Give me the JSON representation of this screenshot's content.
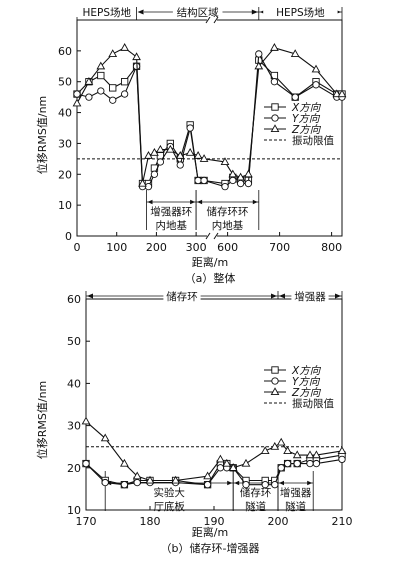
{
  "chart_data": [
    {
      "type": "line",
      "title": "（a）整体",
      "xlabel": "距离/m",
      "ylabel": "位移RMS值/nm",
      "xlim": [
        0,
        820
      ],
      "ylim": [
        0,
        70
      ],
      "break_x": [
        340,
        570
      ],
      "xticks": [
        {
          "value": 0,
          "label": "0"
        },
        {
          "value": 100,
          "label": "100"
        },
        {
          "value": 200,
          "label": "200"
        },
        {
          "value": 300,
          "label": "300"
        },
        {
          "value": 600,
          "label": "600"
        },
        {
          "value": 700,
          "label": "700"
        },
        {
          "value": 800,
          "label": "800"
        }
      ],
      "yticks": [
        0,
        10,
        20,
        30,
        40,
        50,
        60
      ],
      "regions_top": [
        {
          "label": "HEPS场地",
          "from": 0,
          "to": 150
        },
        {
          "label": "结构区域",
          "from": 150,
          "to": 660
        },
        {
          "label": "HEPS场地",
          "from": 660,
          "to": 820
        }
      ],
      "regions_bottom": [
        {
          "label": "增强器环内地基",
          "from": 175,
          "to": 300
        },
        {
          "label": "储存环环内地基",
          "from": 300,
          "to": 660
        }
      ],
      "limit": {
        "name": "振动限值",
        "value": 25
      },
      "series": [
        {
          "name": "X方向",
          "marker": "square",
          "x": [
            0,
            30,
            60,
            90,
            120,
            150,
            165,
            180,
            195,
            210,
            235,
            260,
            285,
            305,
            320,
            595,
            610,
            625,
            640,
            660,
            690,
            730,
            770,
            810,
            820
          ],
          "y": [
            46,
            50,
            52,
            48,
            50,
            55,
            17,
            17,
            22,
            26,
            30,
            25,
            36,
            18,
            18,
            17,
            19,
            18,
            18,
            57,
            52,
            45,
            50,
            46,
            46
          ]
        },
        {
          "name": "Y方向",
          "marker": "circle",
          "x": [
            0,
            30,
            60,
            90,
            120,
            150,
            165,
            180,
            195,
            210,
            235,
            260,
            285,
            305,
            320,
            595,
            610,
            625,
            640,
            660,
            690,
            730,
            770,
            810,
            820
          ],
          "y": [
            46,
            45,
            47,
            44,
            46,
            55,
            16,
            16,
            20,
            24,
            29,
            23,
            35,
            18,
            18,
            16,
            18,
            17,
            17,
            59,
            50,
            45,
            49,
            45,
            45
          ]
        },
        {
          "name": "Z方向",
          "marker": "triangle",
          "x": [
            0,
            30,
            60,
            90,
            120,
            150,
            165,
            180,
            195,
            210,
            235,
            260,
            285,
            305,
            320,
            595,
            610,
            625,
            640,
            660,
            690,
            730,
            770,
            810,
            820
          ],
          "y": [
            43,
            50,
            55,
            59,
            61,
            58,
            17,
            26,
            27,
            28,
            28,
            26,
            27,
            26,
            25,
            24,
            20,
            19,
            20,
            55,
            61,
            59,
            54,
            46,
            46
          ]
        }
      ]
    },
    {
      "type": "line",
      "title": "（b）储存环-增强器",
      "xlabel": "距离/m",
      "ylabel": "位移RMS值/nm",
      "xlim": [
        170,
        210
      ],
      "ylim": [
        10,
        60
      ],
      "xticks": [
        {
          "value": 170,
          "label": "170"
        },
        {
          "value": 180,
          "label": "180"
        },
        {
          "value": 190,
          "label": "190"
        },
        {
          "value": 200,
          "label": "200"
        },
        {
          "value": 210,
          "label": "210"
        }
      ],
      "yticks": [
        10,
        20,
        30,
        40,
        50,
        60
      ],
      "regions_top": [
        {
          "label": "储存环",
          "from": 170,
          "to": 200
        },
        {
          "label": "增强器",
          "from": 200,
          "to": 210
        }
      ],
      "regions_bottom": [
        {
          "label": "实验大厅底板",
          "from": 173,
          "to": 193
        },
        {
          "label": "储存环隧道",
          "from": 193,
          "to": 200
        },
        {
          "label": "增强器隧道",
          "from": 200,
          "to": 205.5
        }
      ],
      "limit": {
        "name": "振动限值",
        "value": 25
      },
      "series": [
        {
          "name": "X方向",
          "marker": "square",
          "x": [
            170,
            173,
            176,
            178,
            180,
            184,
            189,
            191,
            192,
            193,
            195,
            198,
            199.5,
            200.5,
            201.5,
            203,
            205,
            206,
            210
          ],
          "y": [
            21,
            17,
            16,
            17,
            17,
            17,
            16,
            21,
            21,
            20,
            17,
            17,
            17,
            20,
            21,
            21,
            22,
            22,
            23
          ]
        },
        {
          "name": "Y方向",
          "marker": "circle",
          "x": [
            170,
            173,
            176,
            178,
            180,
            184,
            189,
            191,
            192,
            193,
            195,
            198,
            199.5,
            200.5,
            201.5,
            203,
            205,
            206,
            210
          ],
          "y": [
            21,
            16.5,
            16,
            16.5,
            16.5,
            16.5,
            16,
            20,
            20,
            20,
            16,
            16,
            16,
            20,
            21,
            21,
            21,
            21,
            22
          ]
        },
        {
          "name": "Z方向",
          "marker": "triangle",
          "x": [
            170,
            173,
            176,
            178,
            180,
            184,
            189,
            191,
            192,
            193,
            195,
            198,
            199.5,
            200.5,
            201.5,
            203,
            205,
            206,
            210
          ],
          "y": [
            31,
            27,
            21,
            18,
            17,
            17,
            18,
            22,
            21,
            20,
            21,
            24,
            25,
            26,
            24,
            23,
            23,
            23,
            24
          ]
        }
      ]
    }
  ]
}
